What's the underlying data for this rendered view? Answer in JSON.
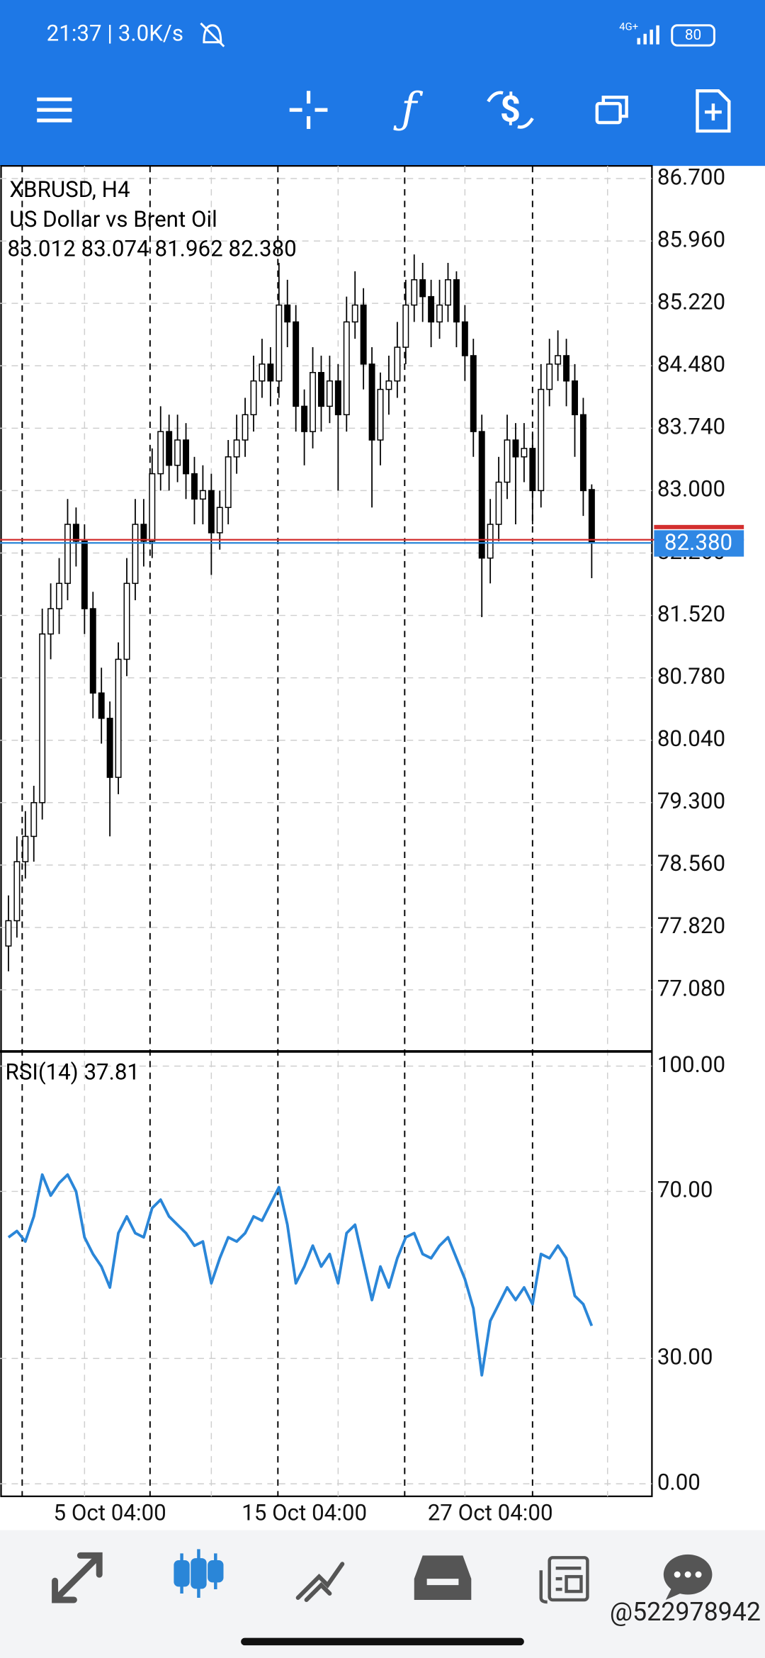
{
  "status_bar": {
    "time_speed": "21:37 | 3.0K/s",
    "network": "4G+",
    "battery": "80"
  },
  "watermark": "@522978942",
  "chart_data": [
    {
      "type": "candlestick",
      "title": "XBRUSD, H4",
      "subtitle": "US Dollar vs Brent Oil",
      "ohlc_label": "83.012 83.074 81.962 82.380",
      "categories": [
        null,
        null,
        null,
        null,
        null,
        null,
        null,
        null,
        null,
        null,
        null,
        null,
        "5 Oct 04:00",
        null,
        null,
        null,
        null,
        null,
        null,
        null,
        null,
        null,
        null,
        null,
        null,
        null,
        null,
        null,
        null,
        null,
        null,
        null,
        null,
        null,
        null,
        "15 Oct 04:00",
        null,
        null,
        null,
        null,
        null,
        null,
        null,
        null,
        null,
        null,
        null,
        null,
        null,
        null,
        null,
        null,
        null,
        null,
        null,
        null,
        null,
        "27 Oct 04:00",
        null,
        null,
        null,
        null,
        null,
        null,
        null,
        null,
        null,
        null,
        null,
        null
      ],
      "open": [
        77.6,
        77.9,
        78.6,
        78.9,
        79.3,
        81.3,
        81.6,
        81.9,
        82.6,
        82.4,
        81.6,
        80.6,
        80.3,
        79.6,
        81.0,
        81.9,
        82.6,
        82.4,
        83.2,
        83.7,
        83.3,
        83.6,
        83.2,
        82.9,
        83.0,
        82.5,
        82.8,
        83.4,
        83.6,
        83.9,
        84.3,
        84.5,
        84.3,
        85.2,
        85.0,
        84.0,
        83.7,
        84.4,
        84.0,
        84.3,
        83.9,
        85.0,
        85.2,
        84.5,
        83.6,
        84.2,
        84.3,
        84.7,
        85.2,
        85.5,
        85.3,
        85.0,
        85.2,
        85.5,
        85.0,
        84.6,
        83.7,
        82.2,
        82.6,
        83.1,
        83.6,
        83.4,
        83.5,
        83.0,
        84.2,
        84.5,
        84.6,
        84.3,
        83.9,
        83.012
      ],
      "high": [
        78.2,
        78.9,
        79.2,
        79.5,
        81.6,
        81.9,
        82.2,
        82.9,
        82.8,
        82.6,
        81.8,
        80.9,
        80.5,
        81.2,
        82.2,
        82.9,
        82.9,
        83.5,
        84.0,
        83.9,
        83.9,
        83.8,
        83.4,
        83.3,
        83.2,
        83.0,
        83.6,
        83.9,
        84.1,
        84.6,
        84.8,
        84.7,
        85.7,
        85.5,
        85.2,
        84.2,
        84.7,
        84.6,
        84.6,
        84.5,
        85.3,
        85.6,
        85.4,
        84.7,
        84.4,
        84.6,
        85.0,
        85.5,
        85.8,
        85.7,
        85.5,
        85.5,
        85.7,
        85.6,
        85.2,
        84.8,
        83.9,
        82.9,
        83.4,
        83.9,
        83.8,
        83.8,
        83.7,
        84.5,
        84.8,
        84.9,
        84.8,
        84.5,
        84.1,
        83.074
      ],
      "low": [
        77.3,
        77.7,
        78.4,
        78.6,
        79.1,
        81.0,
        81.3,
        81.7,
        82.1,
        81.3,
        80.3,
        80.0,
        78.9,
        79.4,
        80.8,
        81.7,
        82.1,
        82.2,
        83.0,
        83.0,
        83.1,
        82.9,
        82.6,
        82.6,
        82.0,
        82.3,
        82.6,
        83.2,
        83.4,
        83.7,
        84.1,
        84.0,
        84.1,
        84.7,
        83.7,
        83.3,
        83.5,
        83.7,
        83.8,
        83.0,
        83.7,
        84.8,
        84.2,
        82.8,
        83.3,
        83.9,
        84.1,
        84.5,
        85.0,
        85.0,
        84.7,
        84.8,
        85.0,
        84.7,
        84.3,
        83.4,
        81.5,
        81.9,
        82.4,
        82.9,
        82.6,
        83.1,
        82.6,
        82.8,
        84.0,
        84.3,
        84.0,
        83.4,
        82.7,
        81.962
      ],
      "close": [
        77.9,
        78.6,
        78.9,
        79.3,
        81.3,
        81.6,
        81.9,
        82.6,
        82.4,
        81.6,
        80.6,
        80.3,
        79.6,
        81.0,
        81.9,
        82.6,
        82.4,
        83.2,
        83.7,
        83.3,
        83.6,
        83.2,
        82.9,
        83.0,
        82.5,
        82.8,
        83.4,
        83.6,
        83.9,
        84.3,
        84.5,
        84.3,
        85.2,
        85.0,
        84.0,
        83.7,
        84.4,
        84.0,
        84.3,
        83.9,
        85.0,
        85.2,
        84.5,
        83.6,
        84.2,
        84.3,
        84.7,
        85.2,
        85.5,
        85.3,
        85.0,
        85.2,
        85.5,
        85.0,
        84.6,
        83.7,
        82.2,
        82.6,
        83.1,
        83.6,
        83.4,
        83.5,
        83.0,
        84.2,
        84.5,
        84.6,
        84.3,
        83.9,
        83.0,
        82.38
      ],
      "bull_color": "#ffffff",
      "bear_color": "#000000",
      "last_price": {
        "value": 82.38,
        "label": "82.380"
      },
      "ylim": [
        76.35,
        86.85
      ],
      "yticks": [
        {
          "value": 86.7,
          "label": "86.700"
        },
        {
          "value": 85.96,
          "label": "85.960"
        },
        {
          "value": 85.22,
          "label": "85.220"
        },
        {
          "value": 84.48,
          "label": "84.480"
        },
        {
          "value": 83.74,
          "label": "83.740"
        },
        {
          "value": 83.0,
          "label": "83.000"
        },
        {
          "value": 82.26,
          "label": "82.260"
        },
        {
          "value": 81.52,
          "label": "81.520"
        },
        {
          "value": 80.78,
          "label": "80.780"
        },
        {
          "value": 80.04,
          "label": "80.040"
        },
        {
          "value": 79.3,
          "label": "79.300"
        },
        {
          "value": 78.56,
          "label": "78.560"
        },
        {
          "value": 77.82,
          "label": "77.820"
        },
        {
          "value": 77.08,
          "label": "77.080"
        }
      ],
      "grid": true
    },
    {
      "type": "line",
      "title": "RSI(14) 37.81",
      "color": "#2a86d8",
      "values": [
        59,
        60.5,
        58,
        64,
        74,
        69,
        72,
        74,
        70,
        59,
        55,
        52,
        47,
        60,
        64,
        60,
        59,
        66,
        68,
        64,
        62,
        60,
        57,
        58,
        48,
        54,
        59,
        58,
        60,
        64,
        63,
        67,
        71,
        62,
        48,
        52,
        57,
        52,
        55,
        48,
        60,
        62,
        53,
        44,
        52,
        47,
        54,
        59,
        60,
        55,
        54,
        57,
        59,
        54,
        49,
        42,
        26,
        39,
        43,
        47,
        44,
        47,
        43,
        55,
        54,
        57,
        54,
        45,
        43,
        37.81
      ],
      "ylim": [
        -3,
        103.5
      ],
      "yticks": [
        {
          "value": 100,
          "label": "100.00"
        },
        {
          "value": 70,
          "label": "70.00"
        },
        {
          "value": 30,
          "label": "30.00"
        },
        {
          "value": 0,
          "label": "0.00"
        }
      ],
      "grid": true
    }
  ]
}
